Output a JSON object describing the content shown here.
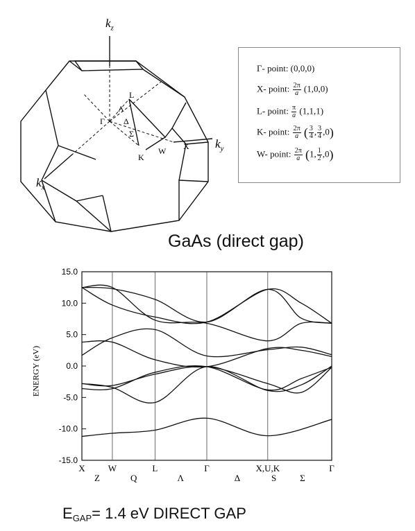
{
  "brillouin_zone": {
    "axis_labels": {
      "kz": "k",
      "kz_sub": "z",
      "ky": "k",
      "ky_sub": "y",
      "kx": "k",
      "kx_sub": "x"
    },
    "point_labels": [
      "Γ",
      "Λ",
      "L",
      "Δ",
      "Σ",
      "K",
      "W",
      "X"
    ]
  },
  "legend": {
    "gamma": {
      "label": "Γ- point: (0,0,0)"
    },
    "x": {
      "prefix": "X- point:",
      "num": "2π",
      "den": "a",
      "coords": "(1,0,0)"
    },
    "l": {
      "prefix": "L- point:",
      "num": "π",
      "den": "a",
      "coords": "(1,1,1)"
    },
    "k": {
      "prefix": "K- point:",
      "num": "2π",
      "den": "a",
      "c1n": "3",
      "c1d": "4",
      "c2n": "3",
      "c2d": "4",
      "c3": ",0"
    },
    "w": {
      "prefix": "W- point:",
      "num": "2π",
      "den": "a",
      "c1": "1,",
      "c2n": "1",
      "c2d": "2",
      "c3": ",0"
    }
  },
  "heading": "GaAs (direct gap)",
  "chart_data": {
    "type": "line",
    "ylabel": "ENERGY (eV)",
    "ylim": [
      -15,
      15
    ],
    "yticks": [
      "15.0",
      "10.0",
      "5.0",
      "0.0",
      "-5.0",
      "-10.0",
      "-15.0"
    ],
    "ytick_values": [
      15,
      10,
      5,
      0,
      -5,
      -10,
      -15
    ],
    "sym_points": [
      {
        "label": "X",
        "x": 0
      },
      {
        "label": "W",
        "x": 0.5
      },
      {
        "label": "L",
        "x": 1.2
      },
      {
        "label": "Γ",
        "x": 2.05
      },
      {
        "label": "X,U,K",
        "x": 3.05
      },
      {
        "label": "Γ",
        "x": 4.1
      }
    ],
    "segment_labels": [
      {
        "label": "Z",
        "x": 0.25
      },
      {
        "label": "Q",
        "x": 0.85
      },
      {
        "label": "Λ",
        "x": 1.62
      },
      {
        "label": "Δ",
        "x": 2.55
      },
      {
        "label": "S",
        "x": 3.15
      },
      {
        "label": "Σ",
        "x": 3.62
      }
    ],
    "xlim": [
      0,
      4.1
    ],
    "series": [
      {
        "points": [
          [
            0,
            -11.2
          ],
          [
            0.5,
            -10.7
          ],
          [
            1.2,
            -10.2
          ],
          [
            2.05,
            -8.3
          ],
          [
            3.05,
            -11.1
          ],
          [
            4.1,
            -8.5
          ]
        ]
      },
      {
        "points": [
          [
            0,
            -2.8
          ],
          [
            0.5,
            -3.1
          ],
          [
            1.2,
            -1.3
          ],
          [
            2.05,
            -0.1
          ],
          [
            3.05,
            -2.8
          ],
          [
            3.6,
            -4.2
          ],
          [
            4.1,
            -0.2
          ]
        ]
      },
      {
        "points": [
          [
            0,
            -2.8
          ],
          [
            0.5,
            -3.4
          ],
          [
            1.2,
            -5.8
          ],
          [
            2.05,
            -0.1
          ],
          [
            3.05,
            -3.9
          ],
          [
            3.6,
            -3.0
          ],
          [
            4.1,
            0.0
          ]
        ]
      },
      {
        "points": [
          [
            0,
            -3.6
          ],
          [
            0.5,
            -3.6
          ],
          [
            1.2,
            -1.0
          ],
          [
            2.05,
            -0.1
          ],
          [
            3.05,
            -3.8
          ],
          [
            3.6,
            -2.0
          ],
          [
            4.1,
            -0.2
          ]
        ]
      },
      {
        "points": [
          [
            0,
            1.7
          ],
          [
            0.5,
            4.5
          ],
          [
            1.2,
            5.8
          ],
          [
            2.05,
            1.6
          ],
          [
            3.05,
            2.6
          ],
          [
            3.6,
            3.0
          ],
          [
            4.1,
            1.8
          ]
        ]
      },
      {
        "points": [
          [
            0,
            3.8
          ],
          [
            0.5,
            3.8
          ],
          [
            1.2,
            1.0
          ],
          [
            2.05,
            -0.1
          ],
          [
            3.05,
            2.8
          ],
          [
            3.6,
            2.5
          ],
          [
            4.1,
            1.5
          ]
        ]
      },
      {
        "points": [
          [
            0,
            12.5
          ],
          [
            0.5,
            12.5
          ],
          [
            1.2,
            7.3
          ],
          [
            2.05,
            6.8
          ],
          [
            3.05,
            4.0
          ],
          [
            3.6,
            6.8
          ],
          [
            4.1,
            6.8
          ]
        ]
      },
      {
        "points": [
          [
            0,
            12.5
          ],
          [
            0.5,
            9.7
          ],
          [
            1.2,
            7.8
          ],
          [
            2.05,
            7.0
          ],
          [
            3.05,
            12.2
          ],
          [
            3.6,
            10.0
          ],
          [
            4.1,
            6.8
          ]
        ]
      },
      {
        "points": [
          [
            0,
            12.5
          ],
          [
            0.5,
            12.3
          ],
          [
            1.2,
            10.6
          ],
          [
            2.05,
            7.0
          ],
          [
            3.05,
            12.2
          ],
          [
            3.6,
            7.6
          ],
          [
            4.1,
            6.8
          ]
        ]
      }
    ]
  },
  "egap": {
    "prefix": "E",
    "sub": "GAP",
    "text": "= 1.4 eV  DIRECT GAP"
  }
}
